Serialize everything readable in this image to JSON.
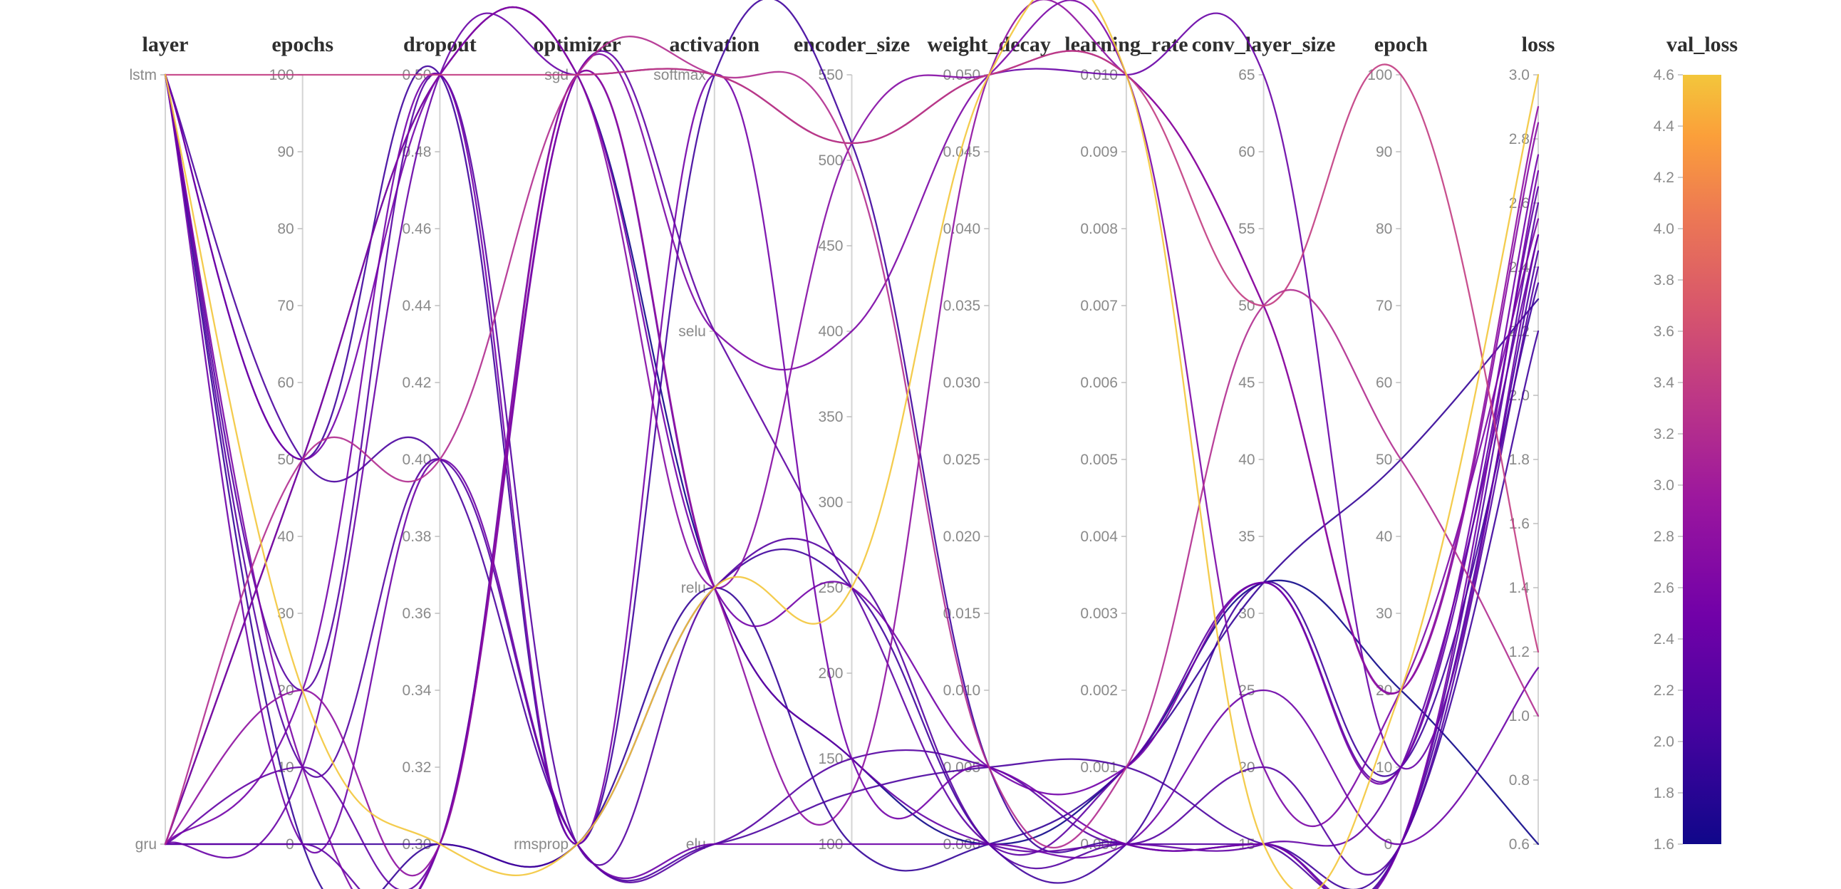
{
  "chart_data": {
    "type": "parallel-coordinates",
    "title": "",
    "background": "#ffffff",
    "axis_line_color": "#d4d4d4",
    "tick_text_color": "#8a8a8a",
    "title_text_color": "#2e2e2e",
    "legend_position": "right-colorbar",
    "axes": [
      {
        "name": "layer",
        "type": "categorical",
        "categories": [
          "lstm",
          "gru"
        ]
      },
      {
        "name": "epochs",
        "type": "linear",
        "min": 0,
        "max": 100,
        "tick_values": [
          0,
          10,
          20,
          30,
          40,
          50,
          60,
          70,
          80,
          90,
          100
        ],
        "tick_labels": [
          "0",
          "10",
          "20",
          "30",
          "40",
          "50",
          "60",
          "70",
          "80",
          "90",
          "100"
        ]
      },
      {
        "name": "dropout",
        "type": "linear",
        "min": 0.3,
        "max": 0.5,
        "tick_values": [
          0.3,
          0.32,
          0.34,
          0.36,
          0.38,
          0.4,
          0.42,
          0.44,
          0.46,
          0.48,
          0.5
        ],
        "tick_labels": [
          "0.30",
          "0.32",
          "0.34",
          "0.36",
          "0.38",
          "0.40",
          "0.42",
          "0.44",
          "0.46",
          "0.48",
          "0.50"
        ]
      },
      {
        "name": "optimizer",
        "type": "categorical",
        "categories": [
          "sgd",
          "rmsprop"
        ]
      },
      {
        "name": "activation",
        "type": "categorical",
        "categories": [
          "softmax",
          "selu",
          "relu",
          "elu"
        ]
      },
      {
        "name": "encoder_size",
        "type": "linear",
        "min": 100,
        "max": 550,
        "tick_values": [
          100,
          150,
          200,
          250,
          300,
          350,
          400,
          450,
          500,
          550
        ],
        "tick_labels": [
          "100",
          "150",
          "200",
          "250",
          "300",
          "350",
          "400",
          "450",
          "500",
          "550"
        ]
      },
      {
        "name": "weight_decay",
        "type": "linear",
        "min": 0,
        "max": 0.05,
        "tick_values": [
          0,
          0.005,
          0.01,
          0.015,
          0.02,
          0.025,
          0.03,
          0.035,
          0.04,
          0.045,
          0.05
        ],
        "tick_labels": [
          "0.000",
          "0.005",
          "0.010",
          "0.015",
          "0.020",
          "0.025",
          "0.030",
          "0.035",
          "0.040",
          "0.045",
          "0.050"
        ]
      },
      {
        "name": "learning_rate",
        "type": "linear",
        "min": 0,
        "max": 0.01,
        "tick_values": [
          0,
          0.001,
          0.002,
          0.003,
          0.004,
          0.005,
          0.006,
          0.007,
          0.008,
          0.009,
          0.01
        ],
        "tick_labels": [
          "0.000",
          "0.001",
          "0.002",
          "0.003",
          "0.004",
          "0.005",
          "0.006",
          "0.007",
          "0.008",
          "0.009",
          "0.010"
        ]
      },
      {
        "name": "conv_layer_size",
        "type": "linear",
        "min": 15,
        "max": 65,
        "tick_values": [
          15,
          20,
          25,
          30,
          35,
          40,
          45,
          50,
          55,
          60,
          65
        ],
        "tick_labels": [
          "15",
          "20",
          "25",
          "30",
          "35",
          "40",
          "45",
          "50",
          "55",
          "60",
          "65"
        ]
      },
      {
        "name": "epoch",
        "type": "linear",
        "min": 0,
        "max": 100,
        "tick_values": [
          0,
          10,
          20,
          30,
          40,
          50,
          60,
          70,
          80,
          90,
          100
        ],
        "tick_labels": [
          "0",
          "10",
          "20",
          "30",
          "40",
          "50",
          "60",
          "70",
          "80",
          "90",
          "100"
        ]
      },
      {
        "name": "loss",
        "type": "linear",
        "min": 0.6,
        "max": 3.0,
        "tick_values": [
          0.6,
          0.8,
          1.0,
          1.2,
          1.4,
          1.6,
          1.8,
          2.0,
          2.2,
          2.4,
          2.6,
          2.8,
          3.0
        ],
        "tick_labels": [
          "0.6",
          "0.8",
          "1.0",
          "1.2",
          "1.4",
          "1.6",
          "1.8",
          "2.0",
          "2.2",
          "2.4",
          "2.6",
          "2.8",
          "3.0"
        ]
      }
    ],
    "color_axis": {
      "name": "val_loss",
      "min": 1.6,
      "max": 4.6,
      "tick_values": [
        1.6,
        1.8,
        2.0,
        2.2,
        2.4,
        2.6,
        2.8,
        3.0,
        3.2,
        3.4,
        3.6,
        3.8,
        4.0,
        4.2,
        4.4,
        4.6
      ],
      "tick_labels": [
        "1.6",
        "1.8",
        "2.0",
        "2.2",
        "2.4",
        "2.6",
        "2.8",
        "3.0",
        "3.2",
        "3.4",
        "3.6",
        "3.8",
        "4.0",
        "4.2",
        "4.4",
        "4.6"
      ],
      "colormap": "plasma",
      "colormap_stops": [
        {
          "t": 0.0,
          "color": "#10078a"
        },
        {
          "t": 0.15,
          "color": "#46039f"
        },
        {
          "t": 0.3,
          "color": "#7201a8"
        },
        {
          "t": 0.45,
          "color": "#9c179e"
        },
        {
          "t": 0.58,
          "color": "#bd3786"
        },
        {
          "t": 0.7,
          "color": "#d8576b"
        },
        {
          "t": 0.82,
          "color": "#ed7953"
        },
        {
          "t": 0.92,
          "color": "#fb9f3a"
        },
        {
          "t": 1.0,
          "color": "#f3c63b"
        }
      ]
    },
    "runs": [
      {
        "layer": "lstm",
        "epochs": 20,
        "dropout": 0.3,
        "optimizer": "rmsprop",
        "activation": "relu",
        "encoder_size": 250,
        "weight_decay": 0.05,
        "learning_rate": 0.01,
        "conv_layer_size": 15,
        "epoch": 20,
        "loss": 3.0,
        "val_loss": 4.6
      },
      {
        "layer": "gru",
        "epochs": 50,
        "dropout": 0.5,
        "optimizer": "sgd",
        "activation": "relu",
        "encoder_size": 150,
        "weight_decay": 0.0,
        "learning_rate": 0.001,
        "conv_layer_size": 32,
        "epoch": 20,
        "loss": 0.6,
        "val_loss": 1.6
      },
      {
        "layer": "lstm",
        "epochs": 100,
        "dropout": 0.5,
        "optimizer": "sgd",
        "activation": "softmax",
        "encoder_size": 510,
        "weight_decay": 0.05,
        "learning_rate": 0.01,
        "conv_layer_size": 50,
        "epoch": 100,
        "loss": 1.2,
        "val_loss": 3.4
      },
      {
        "layer": "gru",
        "epochs": 50,
        "dropout": 0.4,
        "optimizer": "sgd",
        "activation": "softmax",
        "encoder_size": 500,
        "weight_decay": 0.005,
        "learning_rate": 0.001,
        "conv_layer_size": 50,
        "epoch": 50,
        "loss": 1.0,
        "val_loss": 3.2
      },
      {
        "layer": "lstm",
        "epochs": 50,
        "dropout": 0.5,
        "optimizer": "sgd",
        "activation": "relu",
        "encoder_size": 250,
        "weight_decay": 0.005,
        "learning_rate": 0.001,
        "conv_layer_size": 32,
        "epoch": 10,
        "loss": 2.75,
        "val_loss": 2.5
      },
      {
        "layer": "lstm",
        "epochs": 20,
        "dropout": 0.5,
        "optimizer": "rmsprop",
        "activation": "relu",
        "encoder_size": 260,
        "weight_decay": 0.0,
        "learning_rate": 0.0,
        "conv_layer_size": 15,
        "epoch": 0,
        "loss": 2.6,
        "val_loss": 2.2
      },
      {
        "layer": "gru",
        "epochs": 10,
        "dropout": 0.5,
        "optimizer": "sgd",
        "activation": "softmax",
        "encoder_size": 510,
        "weight_decay": 0.05,
        "learning_rate": 0.01,
        "conv_layer_size": 65,
        "epoch": 10,
        "loss": 2.5,
        "val_loss": 2.4
      },
      {
        "layer": "lstm",
        "epochs": 50,
        "dropout": 0.4,
        "optimizer": "rmsprop",
        "activation": "elu",
        "encoder_size": 130,
        "weight_decay": 0.005,
        "learning_rate": 0.001,
        "conv_layer_size": 15,
        "epoch": 0,
        "loss": 2.45,
        "val_loss": 2.1
      },
      {
        "layer": "gru",
        "epochs": 0,
        "dropout": 0.3,
        "optimizer": "rmsprop",
        "activation": "relu",
        "encoder_size": 250,
        "weight_decay": 0.0,
        "learning_rate": 0.0,
        "conv_layer_size": 32,
        "epoch": 10,
        "loss": 2.35,
        "val_loss": 2.0
      },
      {
        "layer": "lstm",
        "epochs": 10,
        "dropout": 0.3,
        "optimizer": "sgd",
        "activation": "selu",
        "encoder_size": 400,
        "weight_decay": 0.05,
        "learning_rate": 0.01,
        "conv_layer_size": 20,
        "epoch": 20,
        "loss": 2.55,
        "val_loss": 2.6
      },
      {
        "layer": "gru",
        "epochs": 20,
        "dropout": 0.5,
        "optimizer": "rmsprop",
        "activation": "softmax",
        "encoder_size": 150,
        "weight_decay": 0.005,
        "learning_rate": 0.0,
        "conv_layer_size": 15,
        "epoch": 0,
        "loss": 2.7,
        "val_loss": 2.5
      },
      {
        "layer": "lstm",
        "epochs": 0,
        "dropout": 0.3,
        "optimizer": "rmsprop",
        "activation": "relu",
        "encoder_size": 100,
        "weight_decay": 0.0,
        "learning_rate": 0.001,
        "conv_layer_size": 32,
        "epoch": 50,
        "loss": 2.3,
        "val_loss": 1.9
      },
      {
        "layer": "gru",
        "epochs": 50,
        "dropout": 0.5,
        "optimizer": "sgd",
        "activation": "relu",
        "encoder_size": 510,
        "weight_decay": 0.05,
        "learning_rate": 0.01,
        "conv_layer_size": 50,
        "epoch": 20,
        "loss": 2.85,
        "val_loss": 2.7
      },
      {
        "layer": "lstm",
        "epochs": 10,
        "dropout": 0.4,
        "optimizer": "rmsprop",
        "activation": "elu",
        "encoder_size": 150,
        "weight_decay": 0.005,
        "learning_rate": 0.0,
        "conv_layer_size": 20,
        "epoch": 0,
        "loss": 2.4,
        "val_loss": 2.2
      },
      {
        "layer": "gru",
        "epochs": 0,
        "dropout": 0.3,
        "optimizer": "sgd",
        "activation": "selu",
        "encoder_size": 250,
        "weight_decay": 0.0,
        "learning_rate": 0.001,
        "conv_layer_size": 32,
        "epoch": 10,
        "loss": 2.65,
        "val_loss": 2.3
      },
      {
        "layer": "lstm",
        "epochs": 50,
        "dropout": 0.5,
        "optimizer": "rmsprop",
        "activation": "softmax",
        "encoder_size": 510,
        "weight_decay": 0.005,
        "learning_rate": 0.0,
        "conv_layer_size": 15,
        "epoch": 0,
        "loss": 2.2,
        "val_loss": 2.0
      },
      {
        "layer": "gru",
        "epochs": 20,
        "dropout": 0.3,
        "optimizer": "sgd",
        "activation": "relu",
        "encoder_size": 130,
        "weight_decay": 0.05,
        "learning_rate": 0.01,
        "conv_layer_size": 50,
        "epoch": 20,
        "loss": 2.9,
        "val_loss": 2.8
      },
      {
        "layer": "lstm",
        "epochs": 0,
        "dropout": 0.4,
        "optimizer": "rmsprop",
        "activation": "elu",
        "encoder_size": 100,
        "weight_decay": 0.0,
        "learning_rate": 0.0,
        "conv_layer_size": 25,
        "epoch": 0,
        "loss": 1.15,
        "val_loss": 2.45
      },
      {
        "layer": "gru",
        "epochs": 10,
        "dropout": 0.3,
        "optimizer": "sgd",
        "activation": "relu",
        "encoder_size": 150,
        "weight_decay": 0.0,
        "learning_rate": 0.0,
        "conv_layer_size": 15,
        "epoch": 10,
        "loss": 2.5,
        "val_loss": 2.35
      }
    ]
  }
}
